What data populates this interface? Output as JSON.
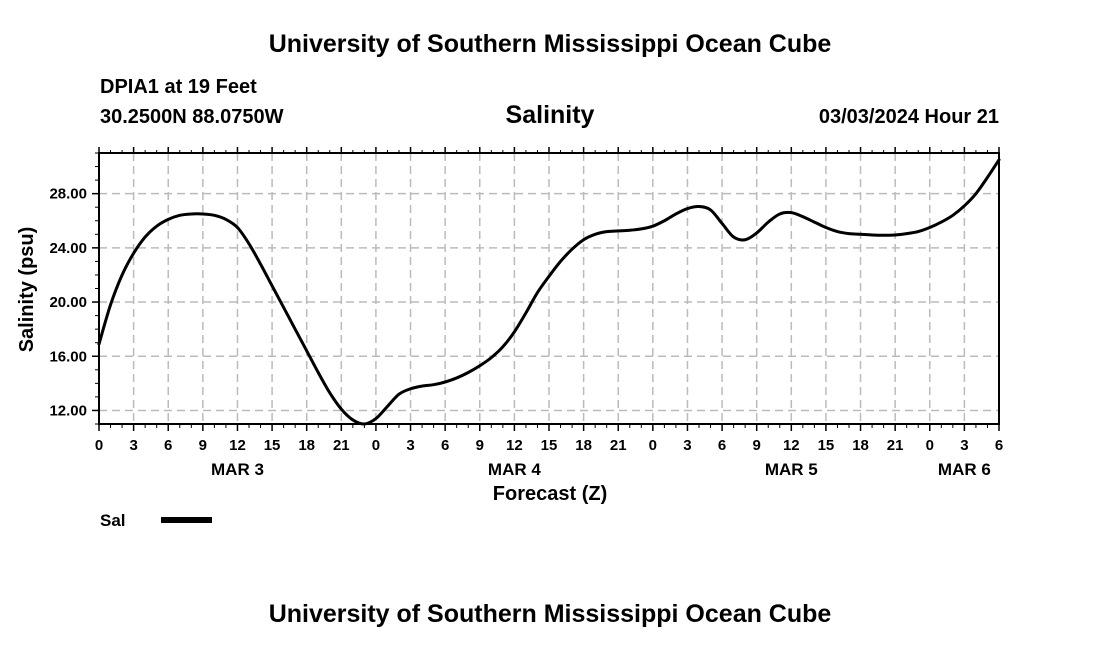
{
  "header": {
    "title": "University of Southern Mississippi Ocean Cube",
    "station": "DPIA1 at 19 Feet",
    "coordinates": "30.2500N  88.0750W",
    "variable": "Salinity",
    "datetime": "03/03/2024 Hour 21"
  },
  "footer": {
    "title": "University of Southern Mississippi Ocean Cube"
  },
  "chart_data": {
    "type": "line",
    "title": "Salinity",
    "xlabel": "Forecast (Z)",
    "ylabel": "Salinity (psu)",
    "x_unit": "hours since MAR 3 00Z",
    "xlim": [
      0,
      78
    ],
    "ylim": [
      11,
      31
    ],
    "grid": true,
    "x_ticks": [
      0,
      3,
      6,
      9,
      12,
      15,
      18,
      21,
      24,
      27,
      30,
      33,
      36,
      39,
      42,
      45,
      48,
      51,
      54,
      57,
      60,
      63,
      66,
      69,
      72,
      75,
      78
    ],
    "x_tick_labels": [
      "0",
      "3",
      "6",
      "9",
      "12",
      "15",
      "18",
      "21",
      "0",
      "3",
      "6",
      "9",
      "12",
      "15",
      "18",
      "21",
      "0",
      "3",
      "6",
      "9",
      "12",
      "15",
      "18",
      "21",
      "0",
      "3",
      "6"
    ],
    "y_ticks": [
      12,
      16,
      20,
      24,
      28
    ],
    "y_tick_labels": [
      "12.00",
      "16.00",
      "20.00",
      "24.00",
      "28.00"
    ],
    "date_labels": [
      {
        "label": "MAR 3",
        "x": 12
      },
      {
        "label": "MAR 4",
        "x": 36
      },
      {
        "label": "MAR 5",
        "x": 60
      },
      {
        "label": "MAR 6",
        "x": 75
      }
    ],
    "legend": {
      "position": "bottom-left",
      "entries": [
        {
          "name": "Sal",
          "color": "#000000"
        }
      ]
    },
    "series": [
      {
        "name": "Sal",
        "color": "#000000",
        "x": [
          0,
          1,
          2,
          3,
          4,
          5,
          6,
          7,
          8,
          9,
          10,
          11,
          12,
          13,
          14,
          15,
          16,
          17,
          18,
          19,
          20,
          21,
          22,
          23,
          24,
          25,
          26,
          27,
          28,
          29,
          30,
          31,
          32,
          33,
          34,
          35,
          36,
          37,
          38,
          39,
          40,
          41,
          42,
          43,
          44,
          45,
          46,
          47,
          48,
          49,
          50,
          51,
          52,
          53,
          54,
          55,
          56,
          57,
          58,
          59,
          60,
          61,
          62,
          63,
          64,
          65,
          66,
          67,
          68,
          69,
          70,
          71,
          72,
          73,
          74,
          75,
          76,
          77,
          78
        ],
        "values": [
          16.9,
          19.8,
          22.0,
          23.6,
          24.8,
          25.6,
          26.1,
          26.4,
          26.5,
          26.5,
          26.4,
          26.1,
          25.5,
          24.3,
          22.8,
          21.2,
          19.6,
          18.0,
          16.4,
          14.8,
          13.3,
          12.1,
          11.3,
          11.0,
          11.4,
          12.3,
          13.2,
          13.6,
          13.8,
          13.9,
          14.1,
          14.4,
          14.8,
          15.3,
          15.9,
          16.7,
          17.8,
          19.2,
          20.7,
          21.9,
          23.0,
          23.9,
          24.6,
          25.0,
          25.2,
          25.25,
          25.3,
          25.4,
          25.6,
          26.0,
          26.5,
          26.9,
          27.05,
          26.8,
          25.8,
          24.8,
          24.6,
          25.1,
          25.9,
          26.5,
          26.6,
          26.3,
          25.9,
          25.5,
          25.2,
          25.05,
          25.0,
          24.95,
          24.93,
          24.95,
          25.05,
          25.2,
          25.5,
          25.9,
          26.4,
          27.1,
          28.0,
          29.2,
          30.5
        ]
      }
    ]
  }
}
